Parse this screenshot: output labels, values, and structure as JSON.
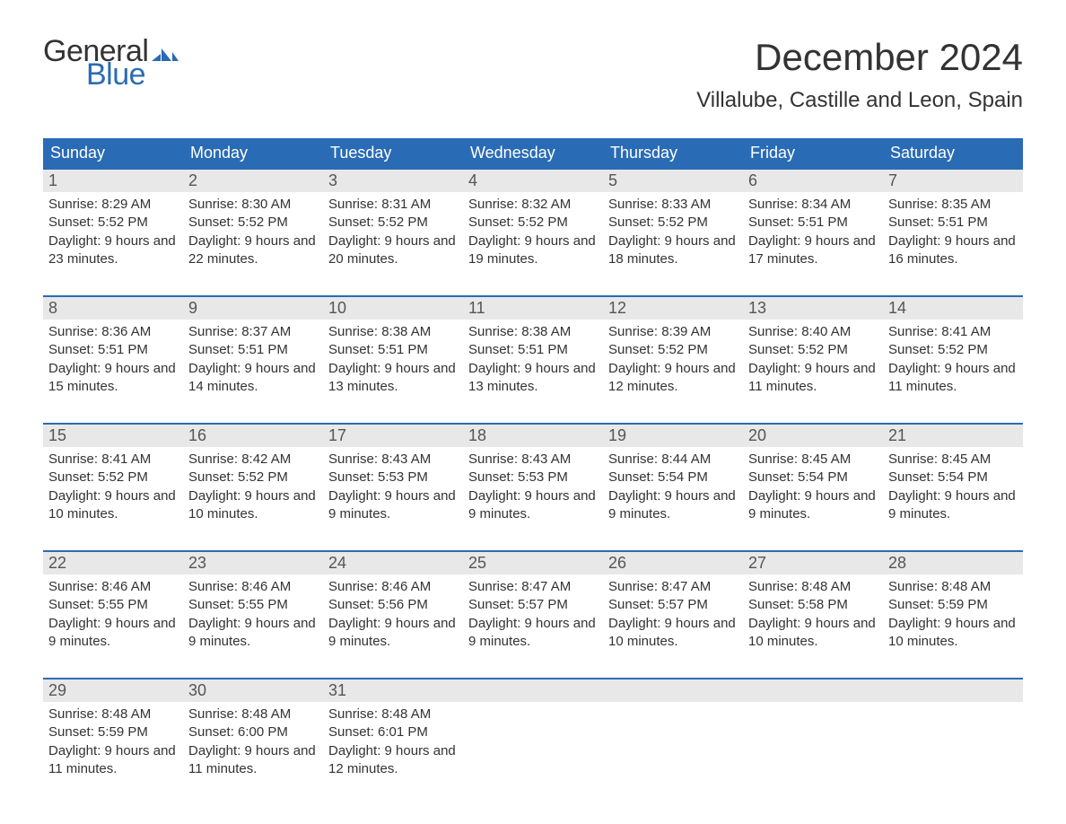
{
  "logo": {
    "word1": "General",
    "word2": "Blue",
    "flag_color": "#2a6bb5"
  },
  "title": "December 2024",
  "location": "Villalube, Castille and Leon, Spain",
  "colors": {
    "header_bg": "#2a6bb5",
    "header_text": "#ffffff",
    "day_number_bg": "#e8e8e8",
    "week_border": "#2a6bb5",
    "body_text": "#333333",
    "page_bg": "#ffffff"
  },
  "typography": {
    "title_fontsize": 42,
    "location_fontsize": 24,
    "weekday_fontsize": 18,
    "daynum_fontsize": 18,
    "body_fontsize": 15
  },
  "weekdays": [
    "Sunday",
    "Monday",
    "Tuesday",
    "Wednesday",
    "Thursday",
    "Friday",
    "Saturday"
  ],
  "weeks": [
    [
      {
        "n": "1",
        "sunrise": "8:29 AM",
        "sunset": "5:52 PM",
        "daylight": "9 hours and 23 minutes."
      },
      {
        "n": "2",
        "sunrise": "8:30 AM",
        "sunset": "5:52 PM",
        "daylight": "9 hours and 22 minutes."
      },
      {
        "n": "3",
        "sunrise": "8:31 AM",
        "sunset": "5:52 PM",
        "daylight": "9 hours and 20 minutes."
      },
      {
        "n": "4",
        "sunrise": "8:32 AM",
        "sunset": "5:52 PM",
        "daylight": "9 hours and 19 minutes."
      },
      {
        "n": "5",
        "sunrise": "8:33 AM",
        "sunset": "5:52 PM",
        "daylight": "9 hours and 18 minutes."
      },
      {
        "n": "6",
        "sunrise": "8:34 AM",
        "sunset": "5:51 PM",
        "daylight": "9 hours and 17 minutes."
      },
      {
        "n": "7",
        "sunrise": "8:35 AM",
        "sunset": "5:51 PM",
        "daylight": "9 hours and 16 minutes."
      }
    ],
    [
      {
        "n": "8",
        "sunrise": "8:36 AM",
        "sunset": "5:51 PM",
        "daylight": "9 hours and 15 minutes."
      },
      {
        "n": "9",
        "sunrise": "8:37 AM",
        "sunset": "5:51 PM",
        "daylight": "9 hours and 14 minutes."
      },
      {
        "n": "10",
        "sunrise": "8:38 AM",
        "sunset": "5:51 PM",
        "daylight": "9 hours and 13 minutes."
      },
      {
        "n": "11",
        "sunrise": "8:38 AM",
        "sunset": "5:51 PM",
        "daylight": "9 hours and 13 minutes."
      },
      {
        "n": "12",
        "sunrise": "8:39 AM",
        "sunset": "5:52 PM",
        "daylight": "9 hours and 12 minutes."
      },
      {
        "n": "13",
        "sunrise": "8:40 AM",
        "sunset": "5:52 PM",
        "daylight": "9 hours and 11 minutes."
      },
      {
        "n": "14",
        "sunrise": "8:41 AM",
        "sunset": "5:52 PM",
        "daylight": "9 hours and 11 minutes."
      }
    ],
    [
      {
        "n": "15",
        "sunrise": "8:41 AM",
        "sunset": "5:52 PM",
        "daylight": "9 hours and 10 minutes."
      },
      {
        "n": "16",
        "sunrise": "8:42 AM",
        "sunset": "5:52 PM",
        "daylight": "9 hours and 10 minutes."
      },
      {
        "n": "17",
        "sunrise": "8:43 AM",
        "sunset": "5:53 PM",
        "daylight": "9 hours and 9 minutes."
      },
      {
        "n": "18",
        "sunrise": "8:43 AM",
        "sunset": "5:53 PM",
        "daylight": "9 hours and 9 minutes."
      },
      {
        "n": "19",
        "sunrise": "8:44 AM",
        "sunset": "5:54 PM",
        "daylight": "9 hours and 9 minutes."
      },
      {
        "n": "20",
        "sunrise": "8:45 AM",
        "sunset": "5:54 PM",
        "daylight": "9 hours and 9 minutes."
      },
      {
        "n": "21",
        "sunrise": "8:45 AM",
        "sunset": "5:54 PM",
        "daylight": "9 hours and 9 minutes."
      }
    ],
    [
      {
        "n": "22",
        "sunrise": "8:46 AM",
        "sunset": "5:55 PM",
        "daylight": "9 hours and 9 minutes."
      },
      {
        "n": "23",
        "sunrise": "8:46 AM",
        "sunset": "5:55 PM",
        "daylight": "9 hours and 9 minutes."
      },
      {
        "n": "24",
        "sunrise": "8:46 AM",
        "sunset": "5:56 PM",
        "daylight": "9 hours and 9 minutes."
      },
      {
        "n": "25",
        "sunrise": "8:47 AM",
        "sunset": "5:57 PM",
        "daylight": "9 hours and 9 minutes."
      },
      {
        "n": "26",
        "sunrise": "8:47 AM",
        "sunset": "5:57 PM",
        "daylight": "9 hours and 10 minutes."
      },
      {
        "n": "27",
        "sunrise": "8:48 AM",
        "sunset": "5:58 PM",
        "daylight": "9 hours and 10 minutes."
      },
      {
        "n": "28",
        "sunrise": "8:48 AM",
        "sunset": "5:59 PM",
        "daylight": "9 hours and 10 minutes."
      }
    ],
    [
      {
        "n": "29",
        "sunrise": "8:48 AM",
        "sunset": "5:59 PM",
        "daylight": "9 hours and 11 minutes."
      },
      {
        "n": "30",
        "sunrise": "8:48 AM",
        "sunset": "6:00 PM",
        "daylight": "9 hours and 11 minutes."
      },
      {
        "n": "31",
        "sunrise": "8:48 AM",
        "sunset": "6:01 PM",
        "daylight": "9 hours and 12 minutes."
      },
      null,
      null,
      null,
      null
    ]
  ],
  "labels": {
    "sunrise_prefix": "Sunrise: ",
    "sunset_prefix": "Sunset: ",
    "daylight_prefix": "Daylight: "
  }
}
